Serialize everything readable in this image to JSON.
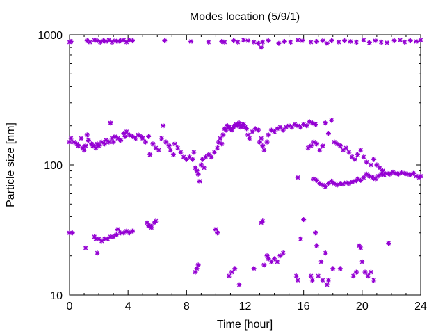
{
  "chart_data": {
    "type": "scatter",
    "title": "Modes location (5/9/1)",
    "xlabel": "Time [hour]",
    "ylabel": "Particle size [nm]",
    "xlim": [
      0,
      24
    ],
    "ylim": [
      10,
      1000
    ],
    "yscale": "log",
    "grid": false,
    "legend": "none",
    "marker_color": "#9400d3",
    "marker": "asterisk",
    "x_ticks": [
      {
        "value": 0,
        "label": "0"
      },
      {
        "value": 4,
        "label": "4"
      },
      {
        "value": 8,
        "label": "8"
      },
      {
        "value": 12,
        "label": "12"
      },
      {
        "value": 16,
        "label": "16"
      },
      {
        "value": 20,
        "label": "20"
      },
      {
        "value": 24,
        "label": "24"
      }
    ],
    "y_ticks": [
      {
        "value": 10,
        "label": "10"
      },
      {
        "value": 100,
        "label": "100"
      },
      {
        "value": 1000,
        "label": "1000"
      }
    ],
    "series": [
      {
        "points": [
          [
            0.0,
            880
          ],
          [
            0.1,
            890
          ],
          [
            1.2,
            900
          ],
          [
            1.4,
            880
          ],
          [
            1.7,
            910
          ],
          [
            1.9,
            900
          ],
          [
            2.1,
            880
          ],
          [
            2.3,
            900
          ],
          [
            2.5,
            890
          ],
          [
            2.7,
            910
          ],
          [
            2.9,
            880
          ],
          [
            3.1,
            900
          ],
          [
            3.3,
            890
          ],
          [
            3.5,
            900
          ],
          [
            3.7,
            910
          ],
          [
            3.9,
            880
          ],
          [
            4.1,
            910
          ],
          [
            4.3,
            900
          ],
          [
            6.5,
            900
          ],
          [
            8.3,
            890
          ],
          [
            9.5,
            880
          ],
          [
            10.4,
            890
          ],
          [
            10.6,
            880
          ],
          [
            11.2,
            900
          ],
          [
            11.5,
            880
          ],
          [
            11.9,
            910
          ],
          [
            12.2,
            900
          ],
          [
            12.6,
            880
          ],
          [
            12.9,
            860
          ],
          [
            13.1,
            800
          ],
          [
            13.2,
            880
          ],
          [
            13.6,
            900
          ],
          [
            14.3,
            860
          ],
          [
            14.7,
            890
          ],
          [
            15.1,
            880
          ],
          [
            15.6,
            910
          ],
          [
            15.9,
            900
          ],
          [
            16.5,
            880
          ],
          [
            16.9,
            890
          ],
          [
            17.3,
            900
          ],
          [
            17.6,
            860
          ],
          [
            17.9,
            900
          ],
          [
            18.4,
            880
          ],
          [
            18.8,
            900
          ],
          [
            19.2,
            890
          ],
          [
            19.6,
            880
          ],
          [
            20.1,
            910
          ],
          [
            20.5,
            870
          ],
          [
            20.9,
            900
          ],
          [
            21.3,
            880
          ],
          [
            21.7,
            870
          ],
          [
            22.2,
            900
          ],
          [
            22.6,
            910
          ],
          [
            22.9,
            880
          ],
          [
            23.3,
            900
          ],
          [
            23.7,
            890
          ],
          [
            24.0,
            910
          ]
        ]
      },
      {
        "points": [
          [
            0.0,
            150
          ],
          [
            0.1,
            160
          ],
          [
            0.3,
            150
          ],
          [
            0.5,
            145
          ],
          [
            0.6,
            140
          ],
          [
            0.8,
            160
          ],
          [
            0.9,
            135
          ],
          [
            1.0,
            130
          ],
          [
            1.1,
            140
          ],
          [
            1.2,
            170
          ],
          [
            1.3,
            155
          ],
          [
            1.5,
            145
          ],
          [
            1.6,
            140
          ],
          [
            1.8,
            135
          ],
          [
            1.9,
            145
          ],
          [
            2.0,
            140
          ],
          [
            2.2,
            150
          ],
          [
            2.4,
            145
          ],
          [
            2.5,
            155
          ],
          [
            2.7,
            150
          ],
          [
            2.8,
            210
          ],
          [
            2.9,
            160
          ],
          [
            3.0,
            150
          ],
          [
            3.1,
            165
          ],
          [
            3.3,
            160
          ],
          [
            3.5,
            155
          ],
          [
            3.7,
            175
          ],
          [
            3.8,
            165
          ],
          [
            3.9,
            180
          ],
          [
            4.1,
            170
          ],
          [
            4.3,
            165
          ],
          [
            4.5,
            160
          ],
          [
            4.7,
            170
          ],
          [
            4.9,
            165
          ],
          [
            5.0,
            160
          ],
          [
            5.2,
            150
          ],
          [
            5.4,
            165
          ],
          [
            5.5,
            120
          ],
          [
            5.7,
            145
          ],
          [
            5.9,
            135
          ],
          [
            6.1,
            130
          ],
          [
            6.3,
            160
          ],
          [
            6.4,
            200
          ],
          [
            6.6,
            150
          ],
          [
            6.8,
            140
          ],
          [
            6.9,
            130
          ],
          [
            7.1,
            120
          ],
          [
            7.2,
            145
          ],
          [
            7.4,
            135
          ],
          [
            7.6,
            125
          ],
          [
            7.8,
            115
          ],
          [
            8.0,
            110
          ],
          [
            8.2,
            115
          ],
          [
            8.4,
            110
          ],
          [
            8.5,
            125
          ],
          [
            8.6,
            95
          ],
          [
            8.7,
            90
          ],
          [
            8.8,
            85
          ],
          [
            8.9,
            75
          ],
          [
            9.0,
            100
          ],
          [
            9.1,
            110
          ],
          [
            9.2,
            95
          ],
          [
            9.3,
            115
          ],
          [
            9.5,
            120
          ],
          [
            9.7,
            115
          ],
          [
            9.9,
            125
          ],
          [
            10.1,
            135
          ],
          [
            10.2,
            150
          ],
          [
            10.3,
            160
          ],
          [
            10.4,
            145
          ],
          [
            10.5,
            170
          ],
          [
            10.6,
            190
          ],
          [
            10.7,
            185
          ],
          [
            10.8,
            200
          ],
          [
            10.9,
            195
          ],
          [
            11.0,
            190
          ],
          [
            11.1,
            185
          ],
          [
            11.2,
            195
          ],
          [
            11.3,
            200
          ],
          [
            11.4,
            205
          ],
          [
            11.5,
            200
          ],
          [
            11.6,
            210
          ],
          [
            11.7,
            195
          ],
          [
            11.8,
            200
          ],
          [
            11.9,
            205
          ],
          [
            12.0,
            195
          ],
          [
            12.1,
            190
          ],
          [
            12.2,
            170
          ],
          [
            12.3,
            160
          ],
          [
            12.5,
            180
          ],
          [
            12.7,
            190
          ],
          [
            12.9,
            185
          ],
          [
            13.0,
            150
          ],
          [
            13.1,
            160
          ],
          [
            13.2,
            140
          ],
          [
            13.3,
            130
          ],
          [
            13.5,
            150
          ],
          [
            13.6,
            170
          ],
          [
            13.8,
            185
          ],
          [
            14.0,
            180
          ],
          [
            14.2,
            190
          ],
          [
            14.4,
            195
          ],
          [
            14.6,
            185
          ],
          [
            14.8,
            195
          ],
          [
            15.0,
            200
          ],
          [
            15.2,
            195
          ],
          [
            15.4,
            205
          ],
          [
            15.6,
            200
          ],
          [
            15.8,
            195
          ],
          [
            16.0,
            205
          ],
          [
            16.2,
            200
          ],
          [
            16.4,
            215
          ],
          [
            16.6,
            210
          ],
          [
            16.8,
            205
          ],
          [
            16.3,
            135
          ],
          [
            16.5,
            140
          ],
          [
            16.7,
            150
          ],
          [
            16.9,
            145
          ],
          [
            17.1,
            130
          ],
          [
            17.3,
            140
          ],
          [
            17.5,
            210
          ],
          [
            17.7,
            175
          ],
          [
            17.9,
            220
          ],
          [
            18.1,
            150
          ],
          [
            18.3,
            145
          ],
          [
            18.5,
            140
          ],
          [
            18.7,
            130
          ],
          [
            18.9,
            135
          ],
          [
            19.1,
            125
          ],
          [
            19.3,
            115
          ],
          [
            19.5,
            110
          ],
          [
            19.7,
            120
          ],
          [
            19.9,
            130
          ],
          [
            20.1,
            115
          ],
          [
            20.3,
            105
          ],
          [
            20.6,
            100
          ],
          [
            20.8,
            110
          ],
          [
            21.0,
            100
          ],
          [
            21.2,
            95
          ],
          [
            21.4,
            90
          ]
        ]
      },
      {
        "points": [
          [
            15.6,
            80
          ],
          [
            16.7,
            78
          ],
          [
            16.9,
            76
          ],
          [
            17.1,
            72
          ],
          [
            17.3,
            70
          ],
          [
            17.5,
            68
          ],
          [
            17.7,
            72
          ],
          [
            17.9,
            75
          ],
          [
            18.1,
            72
          ],
          [
            18.3,
            70
          ],
          [
            18.5,
            72
          ],
          [
            18.7,
            71
          ],
          [
            18.9,
            73
          ],
          [
            19.1,
            72
          ],
          [
            19.3,
            74
          ],
          [
            19.5,
            75
          ],
          [
            19.7,
            78
          ],
          [
            19.9,
            76
          ],
          [
            20.1,
            80
          ],
          [
            20.3,
            85
          ],
          [
            20.5,
            82
          ],
          [
            20.7,
            80
          ],
          [
            20.9,
            78
          ],
          [
            21.1,
            82
          ],
          [
            21.3,
            85
          ],
          [
            21.5,
            84
          ],
          [
            21.7,
            86
          ],
          [
            21.9,
            85
          ],
          [
            22.1,
            88
          ],
          [
            22.3,
            86
          ],
          [
            22.5,
            85
          ],
          [
            22.7,
            87
          ],
          [
            22.9,
            86
          ],
          [
            23.1,
            85
          ],
          [
            23.3,
            84
          ],
          [
            23.5,
            86
          ],
          [
            23.7,
            82
          ],
          [
            23.9,
            80
          ],
          [
            24.0,
            82
          ]
        ]
      },
      {
        "points": [
          [
            0.0,
            30
          ],
          [
            0.2,
            30
          ],
          [
            1.1,
            23
          ],
          [
            1.7,
            28
          ],
          [
            1.8,
            27
          ],
          [
            1.9,
            21
          ],
          [
            2.0,
            27
          ],
          [
            2.2,
            26
          ],
          [
            2.4,
            27
          ],
          [
            2.6,
            27
          ],
          [
            2.8,
            28
          ],
          [
            3.0,
            28
          ],
          [
            3.2,
            29
          ],
          [
            3.3,
            32
          ],
          [
            3.5,
            30
          ],
          [
            3.7,
            30
          ],
          [
            3.9,
            31
          ],
          [
            4.1,
            30
          ],
          [
            4.3,
            31
          ],
          [
            5.3,
            36
          ],
          [
            5.4,
            34
          ],
          [
            5.5,
            34
          ],
          [
            5.6,
            33
          ],
          [
            5.8,
            36
          ],
          [
            5.9,
            37
          ],
          [
            8.6,
            15
          ],
          [
            8.7,
            16
          ],
          [
            8.8,
            17
          ],
          [
            10.0,
            32
          ],
          [
            10.1,
            30
          ],
          [
            10.9,
            14
          ],
          [
            11.1,
            15
          ],
          [
            11.3,
            16
          ],
          [
            11.6,
            12
          ],
          [
            12.6,
            16
          ],
          [
            13.1,
            36
          ],
          [
            13.2,
            37
          ],
          [
            13.3,
            17
          ],
          [
            13.5,
            20
          ],
          [
            13.6,
            19
          ],
          [
            13.8,
            18
          ],
          [
            14.0,
            19
          ],
          [
            14.2,
            18
          ],
          [
            14.4,
            20
          ],
          [
            14.6,
            21
          ],
          [
            15.5,
            14
          ],
          [
            15.6,
            13
          ],
          [
            15.8,
            27
          ],
          [
            16.0,
            38
          ],
          [
            16.5,
            14
          ],
          [
            16.6,
            13
          ],
          [
            16.8,
            30
          ],
          [
            16.9,
            24
          ],
          [
            17.0,
            14
          ],
          [
            17.2,
            18
          ],
          [
            17.3,
            13
          ],
          [
            17.5,
            21
          ],
          [
            17.6,
            12
          ],
          [
            17.7,
            13
          ],
          [
            18.0,
            16
          ],
          [
            18.5,
            16
          ],
          [
            19.4,
            14
          ],
          [
            19.6,
            15
          ],
          [
            19.8,
            24
          ],
          [
            19.9,
            23
          ],
          [
            20.0,
            18
          ],
          [
            20.2,
            15
          ],
          [
            20.4,
            14
          ],
          [
            20.6,
            15
          ],
          [
            20.8,
            13
          ],
          [
            21.8,
            25
          ]
        ]
      }
    ]
  }
}
